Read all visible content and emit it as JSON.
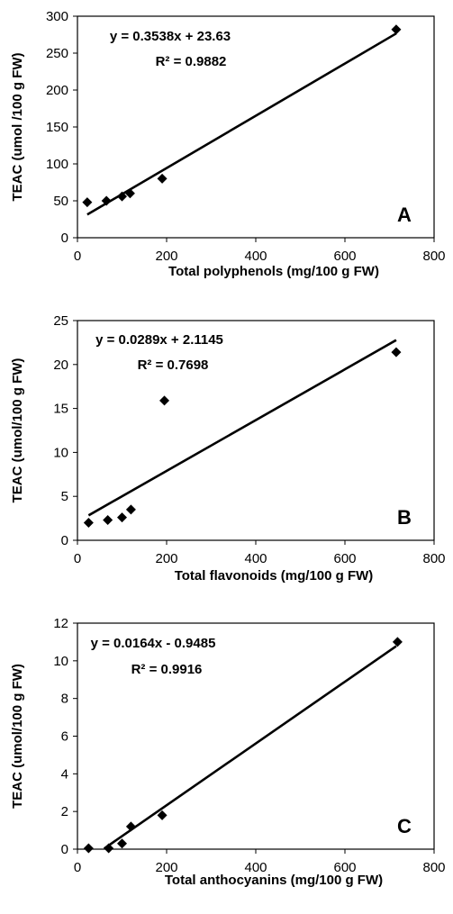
{
  "chart_data": [
    {
      "type": "scatter",
      "panel_label": "A",
      "xlabel": "Total polyphenols (mg/100 g FW)",
      "ylabel": "TEAC (umol /100 g FW)",
      "xlim": [
        0,
        800
      ],
      "ylim": [
        0,
        300
      ],
      "x_ticks": [
        "0",
        "200",
        "400",
        "600",
        "800"
      ],
      "y_ticks": [
        "0",
        "50",
        "100",
        "150",
        "200",
        "250",
        "300"
      ],
      "trendline": {
        "equation": "y = 0.3538x + 23.63",
        "r2": "R² = 0.9882",
        "slope": 0.3538,
        "intercept": 23.63,
        "x_range": [
          22,
          715
        ]
      },
      "series": [
        {
          "x": [
            22,
            65,
            100,
            118,
            190,
            715
          ],
          "y": [
            48,
            50,
            56,
            60,
            80,
            282
          ]
        }
      ],
      "grid": false
    },
    {
      "type": "scatter",
      "panel_label": "B",
      "xlabel": "Total flavonoids (mg/100 g FW)",
      "ylabel": "TEAC (umol/100 g FW)",
      "xlim": [
        0,
        800
      ],
      "ylim": [
        0,
        25
      ],
      "x_ticks": [
        "0",
        "200",
        "400",
        "600",
        "800"
      ],
      "y_ticks": [
        "0",
        "5",
        "10",
        "15",
        "20",
        "25"
      ],
      "trendline": {
        "equation": "y = 0.0289x + 2.1145",
        "r2": "R² = 0.7698",
        "slope": 0.0289,
        "intercept": 2.1145,
        "x_range": [
          25,
          715
        ]
      },
      "series": [
        {
          "x": [
            25,
            68,
            100,
            120,
            195,
            715
          ],
          "y": [
            2.0,
            2.3,
            2.6,
            3.5,
            15.9,
            21.4
          ]
        }
      ],
      "grid": false
    },
    {
      "type": "scatter",
      "panel_label": "C",
      "xlabel": "Total anthocyanins (mg/100 g FW)",
      "ylabel": "TEAC (umol/100 g FW)",
      "xlim": [
        0,
        800
      ],
      "ylim": [
        0,
        12
      ],
      "x_ticks": [
        "0",
        "200",
        "400",
        "600",
        "800"
      ],
      "y_ticks": [
        "0",
        "2",
        "4",
        "6",
        "8",
        "10",
        "12"
      ],
      "trendline": {
        "equation": "y = 0.0164x - 0.9485",
        "r2": "R² = 0.9916",
        "slope": 0.0164,
        "intercept": -0.9485,
        "x_range": [
          60,
          715
        ]
      },
      "series": [
        {
          "x": [
            25,
            70,
            100,
            120,
            190,
            718
          ],
          "y": [
            0.05,
            0.05,
            0.3,
            1.2,
            1.8,
            11.0
          ]
        }
      ],
      "grid": false
    }
  ]
}
